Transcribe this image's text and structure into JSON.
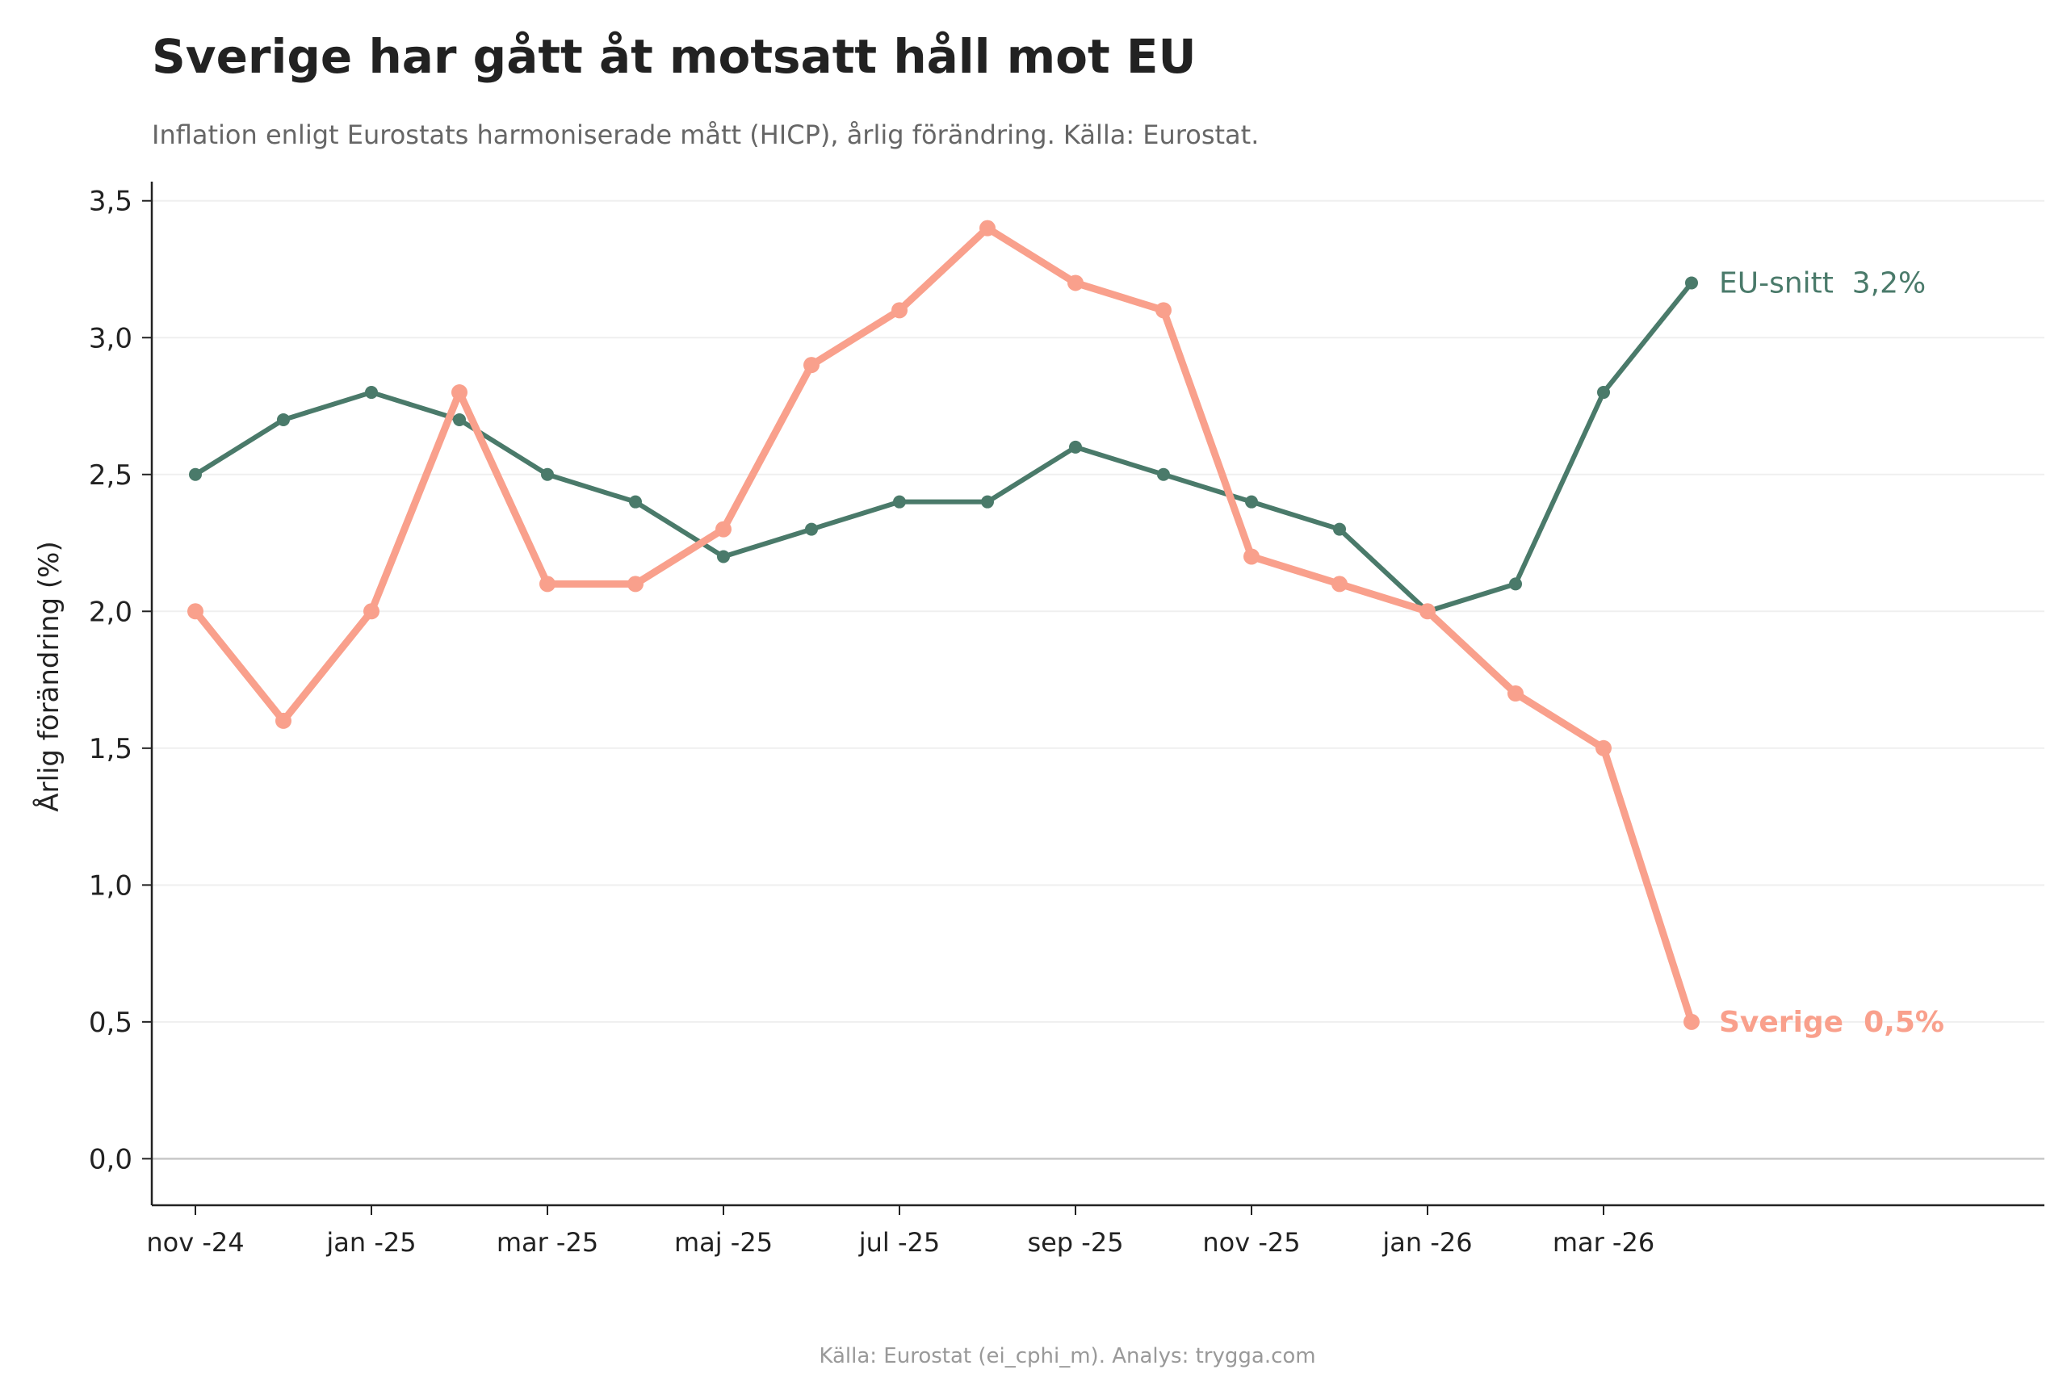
{
  "chart_data": {
    "type": "line",
    "title": "Sverige har gått åt motsatt håll mot EU",
    "subtitle": "Inflation enligt Eurostats harmoniserade mått (HICP), årlig förändring. Källa: Eurostat.",
    "ylabel": "Årlig förändring (%)",
    "xlabel": "",
    "footer": "Källa: Eurostat (ei_cphi_m). Analys: trygga.com",
    "x": [
      "nov -24",
      "dec -24",
      "jan -25",
      "feb -25",
      "mar -25",
      "apr -25",
      "maj -25",
      "jun -25",
      "jul -25",
      "aug -25",
      "sep -25",
      "okt -25",
      "nov -25",
      "dec -25",
      "jan -26",
      "feb -26",
      "mar -26",
      "apr -26"
    ],
    "x_ticks": [
      "nov -24",
      "jan -25",
      "mar -25",
      "maj -25",
      "jul -25",
      "sep -25",
      "nov -25",
      "jan -26",
      "mar -26"
    ],
    "y_ticks": [
      "0,0",
      "0,5",
      "1,0",
      "1,5",
      "2,0",
      "2,5",
      "3,0",
      "3,5"
    ],
    "ylim": [
      -0.17,
      3.57
    ],
    "grid": "horizontal",
    "series": [
      {
        "name": "EU-snitt",
        "end_label": "EU-snitt  3,2%",
        "color": "#4a7a6a",
        "values": [
          2.5,
          2.7,
          2.8,
          2.7,
          2.5,
          2.4,
          2.2,
          2.3,
          2.4,
          2.4,
          2.6,
          2.5,
          2.4,
          2.3,
          2.0,
          2.1,
          2.8,
          3.2
        ]
      },
      {
        "name": "Sverige",
        "end_label": "Sverige  0,5%",
        "color": "#f9a08c",
        "values": [
          2.0,
          1.6,
          2.0,
          2.8,
          2.1,
          2.1,
          2.3,
          2.9,
          3.1,
          3.4,
          3.2,
          3.1,
          2.2,
          2.1,
          2.0,
          1.7,
          1.5,
          0.5
        ]
      }
    ]
  }
}
